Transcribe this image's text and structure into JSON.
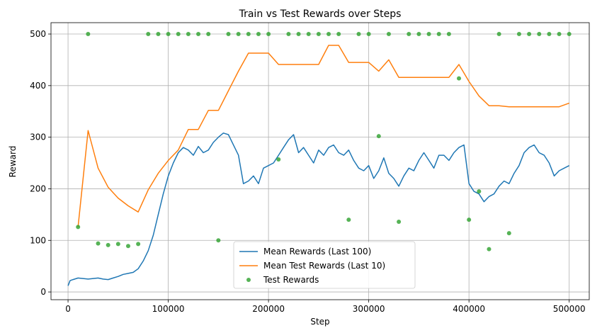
{
  "chart_data": {
    "type": "line",
    "title": "Train vs Test Rewards over Steps",
    "xlabel": "Step",
    "ylabel": "Reward",
    "xlim": [
      -17000,
      520000
    ],
    "ylim": [
      -15,
      522
    ],
    "grid": true,
    "legend_position": "lower-center",
    "x_ticks": [
      0,
      100000,
      200000,
      300000,
      400000,
      500000
    ],
    "x_tick_labels": [
      "0",
      "100000",
      "200000",
      "300000",
      "400000",
      "500000"
    ],
    "y_ticks": [
      0,
      100,
      200,
      300,
      400,
      500
    ],
    "y_tick_labels": [
      "0",
      "100",
      "200",
      "300",
      "400",
      "500"
    ],
    "series": [
      {
        "name": "Mean Rewards (Last 100)",
        "kind": "line",
        "color": "#1f77b4",
        "x": [
          0,
          2000,
          5000,
          10000,
          15000,
          20000,
          25000,
          30000,
          35000,
          40000,
          45000,
          50000,
          55000,
          60000,
          65000,
          70000,
          75000,
          80000,
          85000,
          90000,
          95000,
          100000,
          105000,
          110000,
          115000,
          120000,
          125000,
          130000,
          135000,
          140000,
          145000,
          150000,
          155000,
          160000,
          165000,
          170000,
          175000,
          180000,
          185000,
          190000,
          195000,
          200000,
          205000,
          210000,
          215000,
          220000,
          225000,
          230000,
          235000,
          240000,
          245000,
          250000,
          255000,
          260000,
          265000,
          270000,
          275000,
          280000,
          285000,
          290000,
          295000,
          300000,
          305000,
          310000,
          315000,
          320000,
          325000,
          330000,
          335000,
          340000,
          345000,
          350000,
          355000,
          360000,
          365000,
          370000,
          375000,
          380000,
          385000,
          390000,
          395000,
          400000,
          405000,
          410000,
          415000,
          420000,
          425000,
          430000,
          435000,
          440000,
          445000,
          450000,
          455000,
          460000,
          465000,
          470000,
          475000,
          480000,
          485000,
          490000,
          495000,
          500000
        ],
        "y": [
          12,
          22,
          24,
          27,
          26,
          25,
          26,
          27,
          25,
          24,
          27,
          30,
          34,
          36,
          38,
          45,
          60,
          80,
          110,
          150,
          190,
          225,
          250,
          270,
          280,
          275,
          265,
          282,
          270,
          275,
          290,
          300,
          308,
          305,
          285,
          265,
          210,
          215,
          225,
          210,
          240,
          245,
          250,
          265,
          280,
          295,
          305,
          270,
          280,
          265,
          250,
          275,
          265,
          280,
          285,
          270,
          265,
          275,
          255,
          240,
          235,
          245,
          220,
          235,
          260,
          230,
          220,
          205,
          225,
          240,
          235,
          255,
          270,
          255,
          240,
          265,
          265,
          255,
          270,
          280,
          285,
          210,
          195,
          190,
          175,
          185,
          190,
          205,
          215,
          210,
          230,
          245,
          270,
          280,
          285,
          270,
          265,
          250,
          225,
          235,
          240,
          245
        ]
      },
      {
        "name": "Mean Test Rewards (Last 10)",
        "kind": "line",
        "color": "#ff7f0e",
        "x": [
          10000,
          20000,
          30000,
          40000,
          50000,
          60000,
          70000,
          80000,
          90000,
          100000,
          110000,
          120000,
          130000,
          140000,
          150000,
          160000,
          170000,
          180000,
          190000,
          200000,
          210000,
          220000,
          230000,
          240000,
          250000,
          260000,
          270000,
          280000,
          290000,
          300000,
          310000,
          320000,
          330000,
          340000,
          350000,
          360000,
          370000,
          380000,
          390000,
          400000,
          410000,
          420000,
          430000,
          440000,
          450000,
          460000,
          470000,
          480000,
          490000,
          500000
        ],
        "y": [
          126,
          313,
          240,
          203,
          182,
          167,
          155,
          198,
          230,
          255,
          275,
          315,
          315,
          352,
          352,
          390,
          428,
          463,
          463,
          463,
          441,
          441,
          441,
          441,
          441,
          478,
          478,
          445,
          445,
          445,
          428,
          450,
          416,
          416,
          416,
          416,
          416,
          416,
          441,
          408,
          380,
          361,
          361,
          359,
          359,
          359,
          359,
          359,
          359,
          366
        ]
      },
      {
        "name": "Test Rewards",
        "kind": "scatter",
        "color": "#2ca02c",
        "x": [
          10000,
          20000,
          30000,
          40000,
          50000,
          60000,
          70000,
          80000,
          90000,
          100000,
          110000,
          120000,
          130000,
          140000,
          150000,
          160000,
          170000,
          180000,
          190000,
          200000,
          210000,
          220000,
          230000,
          240000,
          250000,
          260000,
          270000,
          280000,
          290000,
          300000,
          310000,
          320000,
          330000,
          340000,
          350000,
          360000,
          370000,
          380000,
          390000,
          400000,
          410000,
          420000,
          430000,
          440000,
          450000,
          460000,
          470000,
          480000,
          490000,
          500000
        ],
        "y": [
          126,
          500,
          94,
          91,
          93,
          89,
          93,
          500,
          500,
          500,
          500,
          500,
          500,
          500,
          100,
          500,
          500,
          500,
          500,
          500,
          257,
          500,
          500,
          500,
          500,
          500,
          500,
          140,
          500,
          500,
          302,
          500,
          136,
          500,
          500,
          500,
          500,
          500,
          414,
          140,
          195,
          83,
          500,
          114,
          500,
          500,
          500,
          500,
          500,
          500
        ]
      }
    ]
  }
}
